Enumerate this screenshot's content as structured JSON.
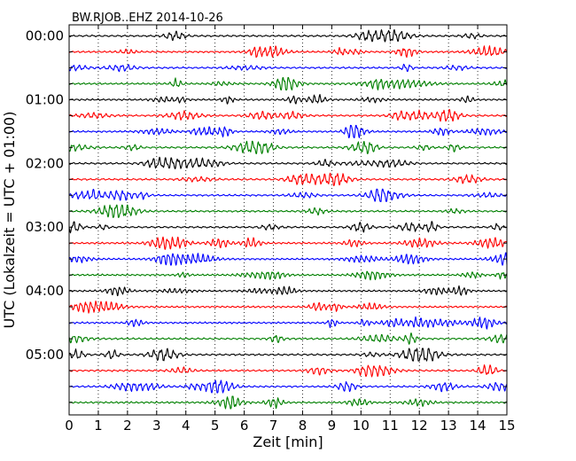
{
  "chart_data": {
    "type": "line",
    "title": "BW.RJOB..EHZ 2014-10-26",
    "xlabel": "Zeit  [min]",
    "ylabel": "UTC (Lokalzeit = UTC + 01:00)",
    "xlim": [
      0,
      15
    ],
    "x_ticks": [
      "0",
      "1",
      "2",
      "3",
      "4",
      "5",
      "6",
      "7",
      "8",
      "9",
      "10",
      "11",
      "12",
      "13",
      "14",
      "15"
    ],
    "row_interval_minutes": 15,
    "y_tick_labels": [
      "00:00",
      "01:00",
      "02:00",
      "03:00",
      "04:00",
      "05:00"
    ],
    "color_cycle": [
      "#000000",
      "#ff0000",
      "#0000ff",
      "#008000"
    ],
    "grid": {
      "x": "dotted",
      "y": "none"
    },
    "rows": [
      "00:00",
      "00:15",
      "00:30",
      "00:45",
      "01:00",
      "01:15",
      "01:30",
      "01:45",
      "02:00",
      "02:15",
      "02:30",
      "02:45",
      "03:00",
      "03:15",
      "03:30",
      "03:45",
      "04:00",
      "04:15",
      "04:30",
      "04:45",
      "05:00",
      "05:15",
      "05:30",
      "05:45"
    ]
  }
}
